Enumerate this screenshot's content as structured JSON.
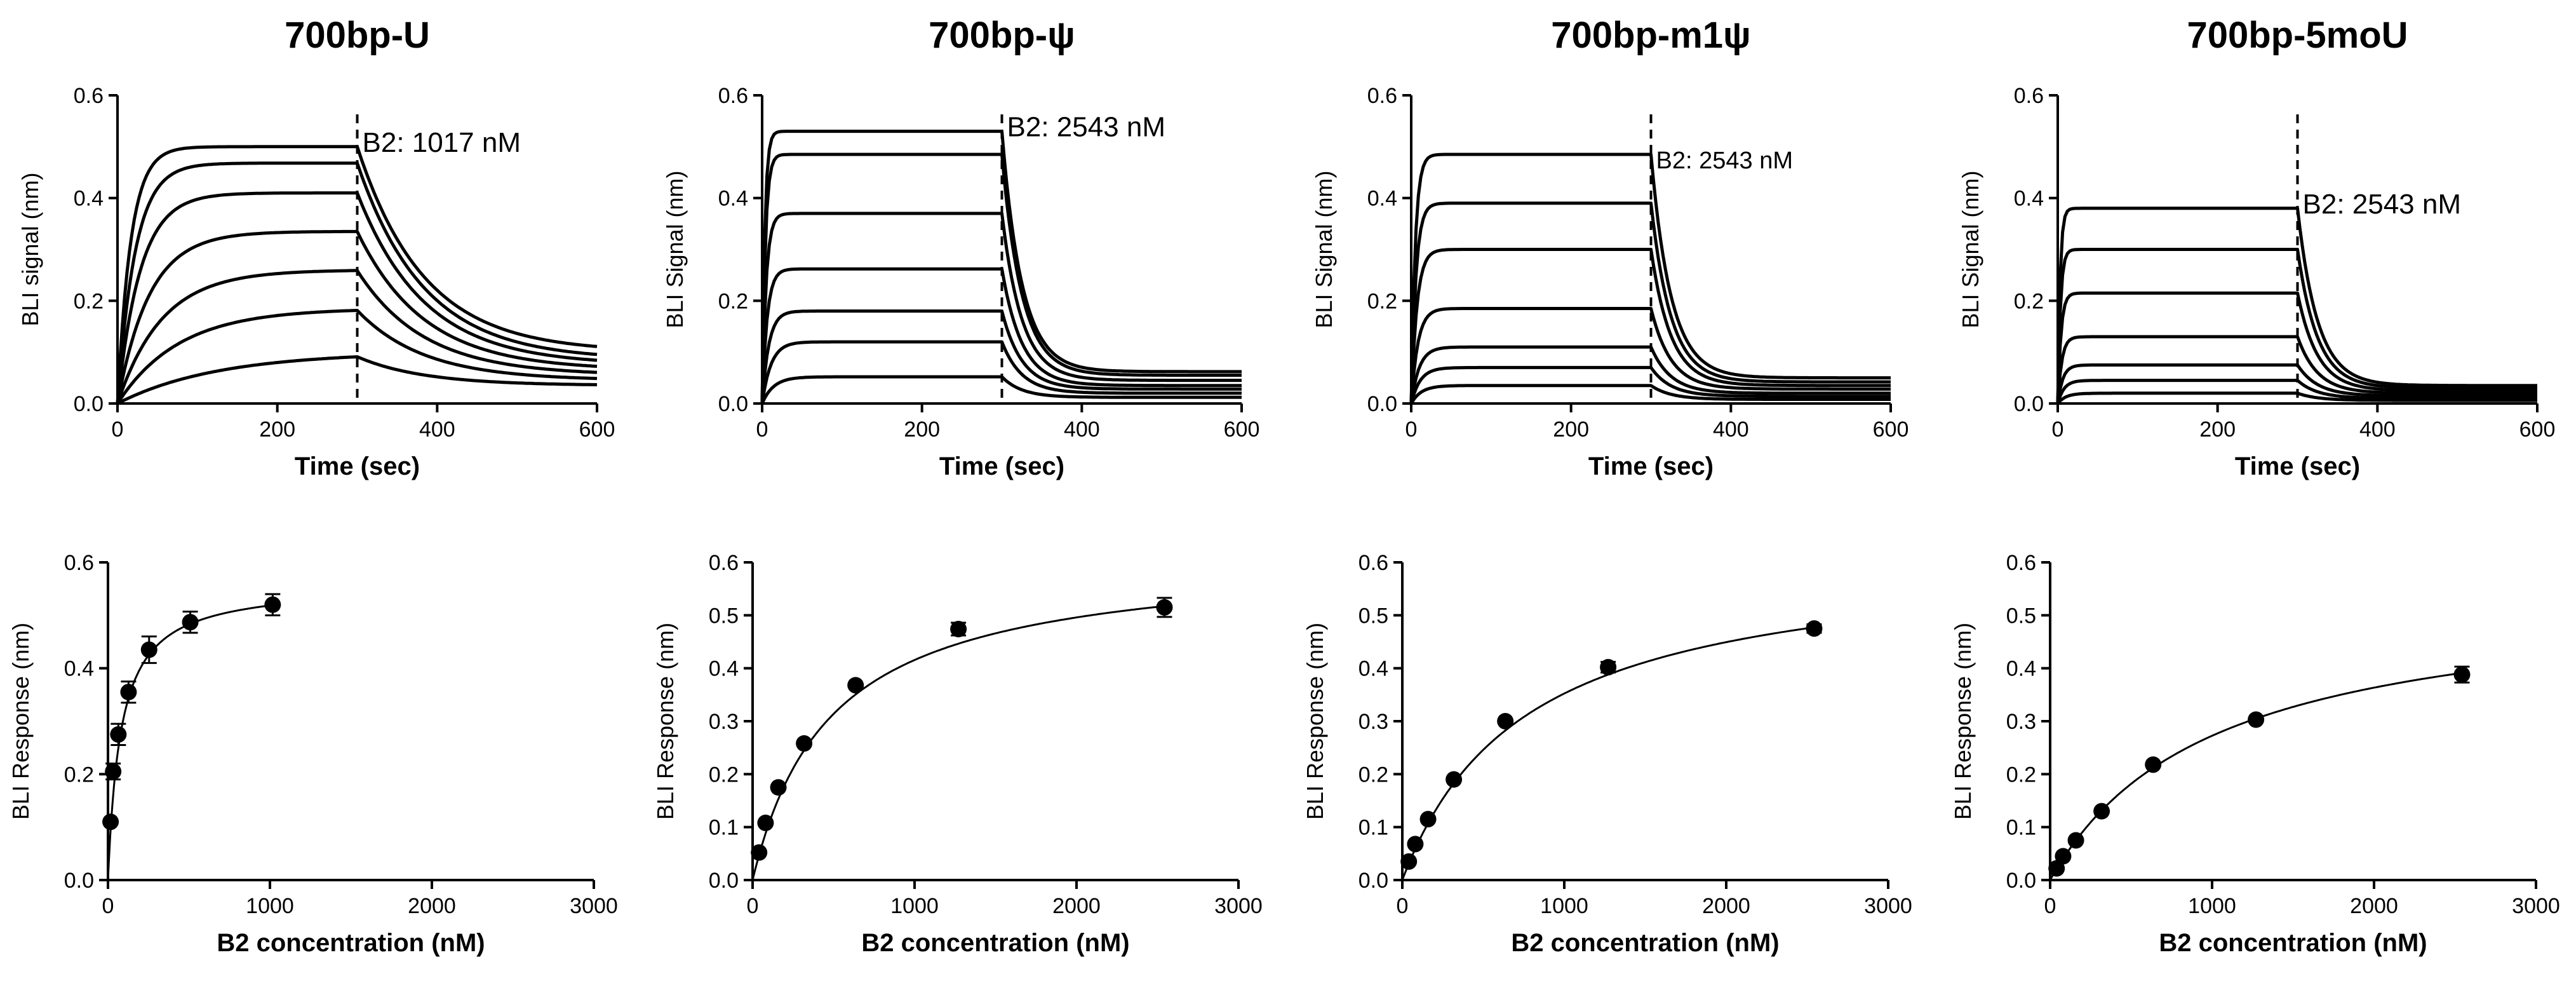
{
  "colors": {
    "ink": "#000000",
    "background": "#ffffff"
  },
  "chart_data": [
    {
      "type": "line",
      "panel": "top-1",
      "title": "700bp-U",
      "xlabel": "Time (sec)",
      "ylabel": "BLI signal (nm)",
      "xlim": [
        0,
        600
      ],
      "ylim": [
        0,
        0.6
      ],
      "xticks": [
        "0",
        "200",
        "400",
        "600"
      ],
      "yticks": [
        "0.0",
        "0.2",
        "0.4",
        "0.6"
      ],
      "marker_x": 300,
      "annotation": "B2: 1017 nM",
      "association_end": 300,
      "series": [
        {
          "name": "c7",
          "plateau": 0.5,
          "ka": 0.06,
          "end": 0.1
        },
        {
          "name": "c6",
          "plateau": 0.468,
          "ka": 0.045,
          "end": 0.085
        },
        {
          "name": "c5",
          "plateau": 0.41,
          "ka": 0.035,
          "end": 0.075
        },
        {
          "name": "c4",
          "plateau": 0.335,
          "ka": 0.025,
          "end": 0.065
        },
        {
          "name": "c3",
          "plateau": 0.26,
          "ka": 0.018,
          "end": 0.055
        },
        {
          "name": "c2",
          "plateau": 0.185,
          "ka": 0.013,
          "end": 0.045
        },
        {
          "name": "c1",
          "plateau": 0.1,
          "ka": 0.008,
          "end": 0.035
        }
      ]
    },
    {
      "type": "line",
      "panel": "top-2",
      "title": "700bp-ψ",
      "xlabel": "Time (sec)",
      "ylabel": "BLI Signal (nm)",
      "xlim": [
        0,
        600
      ],
      "ylim": [
        0,
        0.6
      ],
      "xticks": [
        "0",
        "200",
        "400",
        "600"
      ],
      "yticks": [
        "0.0",
        "0.2",
        "0.4",
        "0.6"
      ],
      "marker_x": 300,
      "annotation": "B2: 2543 nM",
      "association_end": 300,
      "series": [
        {
          "name": "c7",
          "plateau": 0.53,
          "ka": 0.3,
          "end": 0.062
        },
        {
          "name": "c6",
          "plateau": 0.485,
          "ka": 0.25,
          "end": 0.055
        },
        {
          "name": "c5",
          "plateau": 0.37,
          "ka": 0.2,
          "end": 0.045
        },
        {
          "name": "c4",
          "plateau": 0.262,
          "ka": 0.16,
          "end": 0.035
        },
        {
          "name": "c3",
          "plateau": 0.18,
          "ka": 0.12,
          "end": 0.028
        },
        {
          "name": "c2",
          "plateau": 0.12,
          "ka": 0.09,
          "end": 0.02
        },
        {
          "name": "c1",
          "plateau": 0.052,
          "ka": 0.07,
          "end": 0.012
        }
      ]
    },
    {
      "type": "line",
      "panel": "top-3",
      "title": "700bp-m1ψ",
      "xlabel": "Time (sec)",
      "ylabel": "BLI Signal (nm)",
      "xlim": [
        0,
        600
      ],
      "ylim": [
        0,
        0.6
      ],
      "xticks": [
        "0",
        "200",
        "400",
        "600"
      ],
      "yticks": [
        "0.0",
        "0.2",
        "0.4",
        "0.6"
      ],
      "marker_x": 300,
      "annotation": "B2: 2543 nM",
      "association_end": 300,
      "series": [
        {
          "name": "c7",
          "plateau": 0.485,
          "ka": 0.2,
          "end": 0.05
        },
        {
          "name": "c6",
          "plateau": 0.39,
          "ka": 0.17,
          "end": 0.042
        },
        {
          "name": "c5",
          "plateau": 0.3,
          "ka": 0.14,
          "end": 0.035
        },
        {
          "name": "c4",
          "plateau": 0.185,
          "ka": 0.12,
          "end": 0.028
        },
        {
          "name": "c3",
          "plateau": 0.11,
          "ka": 0.1,
          "end": 0.02
        },
        {
          "name": "c2",
          "plateau": 0.07,
          "ka": 0.09,
          "end": 0.014
        },
        {
          "name": "c1",
          "plateau": 0.035,
          "ka": 0.08,
          "end": 0.008
        }
      ]
    },
    {
      "type": "line",
      "panel": "top-4",
      "title": "700bp-5moU",
      "xlabel": "Time (sec)",
      "ylabel": "BLI Signal (nm)",
      "xlim": [
        0,
        600
      ],
      "ylim": [
        0,
        0.6
      ],
      "xticks": [
        "0",
        "200",
        "400",
        "600"
      ],
      "yticks": [
        "0.0",
        "0.2",
        "0.4",
        "0.6"
      ],
      "marker_x": 300,
      "annotation": "B2: 2543 nM",
      "association_end": 300,
      "series": [
        {
          "name": "c7",
          "plateau": 0.38,
          "ka": 0.35,
          "end": 0.035
        },
        {
          "name": "c6",
          "plateau": 0.3,
          "ka": 0.3,
          "end": 0.03
        },
        {
          "name": "c5",
          "plateau": 0.215,
          "ka": 0.25,
          "end": 0.025
        },
        {
          "name": "c4",
          "plateau": 0.13,
          "ka": 0.2,
          "end": 0.02
        },
        {
          "name": "c3",
          "plateau": 0.075,
          "ka": 0.16,
          "end": 0.015
        },
        {
          "name": "c2",
          "plateau": 0.045,
          "ka": 0.13,
          "end": 0.01
        },
        {
          "name": "c1",
          "plateau": 0.02,
          "ka": 0.1,
          "end": 0.006
        }
      ]
    },
    {
      "type": "scatter",
      "panel": "bottom-1",
      "title": "",
      "xlabel": "B2 concentration (nM)",
      "ylabel": "BLI Response (nm)",
      "xlim": [
        0,
        3000
      ],
      "ylim": [
        0,
        0.6
      ],
      "xticks": [
        "0",
        "1000",
        "2000",
        "3000"
      ],
      "yticks": [
        "0.0",
        "0.2",
        "0.4",
        "0.6"
      ],
      "fit": {
        "model": "one-site saturation",
        "bmax": 0.56,
        "kd": 80
      },
      "points": [
        {
          "x": 16,
          "y": 0.11,
          "err": 0
        },
        {
          "x": 32,
          "y": 0.205,
          "err": 0.015
        },
        {
          "x": 64,
          "y": 0.275,
          "err": 0.02
        },
        {
          "x": 127,
          "y": 0.355,
          "err": 0.02
        },
        {
          "x": 254,
          "y": 0.435,
          "err": 0.025
        },
        {
          "x": 508,
          "y": 0.487,
          "err": 0.02
        },
        {
          "x": 1017,
          "y": 0.52,
          "err": 0.02
        }
      ]
    },
    {
      "type": "scatter",
      "panel": "bottom-2",
      "title": "",
      "xlabel": "B2 concentration (nM)",
      "ylabel": "BLI Response (nm)",
      "xlim": [
        0,
        3000
      ],
      "ylim": [
        0,
        0.6
      ],
      "xticks": [
        "0",
        "1000",
        "2000",
        "3000"
      ],
      "yticks": [
        "0.0",
        "0.1",
        "0.2",
        "0.3",
        "0.4",
        "0.5",
        "0.6"
      ],
      "fit": {
        "model": "one-site saturation",
        "bmax": 0.615,
        "kd": 480
      },
      "points": [
        {
          "x": 40,
          "y": 0.052,
          "err": 0
        },
        {
          "x": 80,
          "y": 0.108,
          "err": 0
        },
        {
          "x": 159,
          "y": 0.175,
          "err": 0
        },
        {
          "x": 318,
          "y": 0.258,
          "err": 0
        },
        {
          "x": 636,
          "y": 0.368,
          "err": 0
        },
        {
          "x": 1271,
          "y": 0.474,
          "err": 0.012
        },
        {
          "x": 2543,
          "y": 0.515,
          "err": 0.018
        }
      ]
    },
    {
      "type": "scatter",
      "panel": "bottom-3",
      "title": "",
      "xlabel": "B2 concentration (nM)",
      "ylabel": "BLI Response (nm)",
      "xlim": [
        0,
        3000
      ],
      "ylim": [
        0,
        0.6
      ],
      "xticks": [
        "0",
        "1000",
        "2000",
        "3000"
      ],
      "yticks": [
        "0.0",
        "0.1",
        "0.2",
        "0.3",
        "0.4",
        "0.5",
        "0.6"
      ],
      "fit": {
        "model": "one-site saturation",
        "bmax": 0.62,
        "kd": 760
      },
      "points": [
        {
          "x": 40,
          "y": 0.035,
          "err": 0
        },
        {
          "x": 80,
          "y": 0.068,
          "err": 0
        },
        {
          "x": 159,
          "y": 0.115,
          "err": 0
        },
        {
          "x": 318,
          "y": 0.19,
          "err": 0
        },
        {
          "x": 636,
          "y": 0.3,
          "err": 0
        },
        {
          "x": 1271,
          "y": 0.402,
          "err": 0.01
        },
        {
          "x": 2543,
          "y": 0.475,
          "err": 0.008
        }
      ]
    },
    {
      "type": "scatter",
      "panel": "bottom-4",
      "title": "",
      "xlabel": "B2 concentration (nM)",
      "ylabel": "BLI Response (nm)",
      "xlim": [
        0,
        3000
      ],
      "ylim": [
        0,
        0.6
      ],
      "xticks": [
        "0",
        "1000",
        "2000",
        "3000"
      ],
      "yticks": [
        "0.0",
        "0.1",
        "0.2",
        "0.3",
        "0.4",
        "0.5",
        "0.6"
      ],
      "fit": {
        "model": "one-site saturation",
        "bmax": 0.545,
        "kd": 1000
      },
      "points": [
        {
          "x": 40,
          "y": 0.022,
          "err": 0
        },
        {
          "x": 80,
          "y": 0.045,
          "err": 0
        },
        {
          "x": 159,
          "y": 0.075,
          "err": 0
        },
        {
          "x": 318,
          "y": 0.13,
          "err": 0
        },
        {
          "x": 636,
          "y": 0.218,
          "err": 0
        },
        {
          "x": 1271,
          "y": 0.303,
          "err": 0
        },
        {
          "x": 2543,
          "y": 0.388,
          "err": 0.015
        }
      ]
    }
  ]
}
